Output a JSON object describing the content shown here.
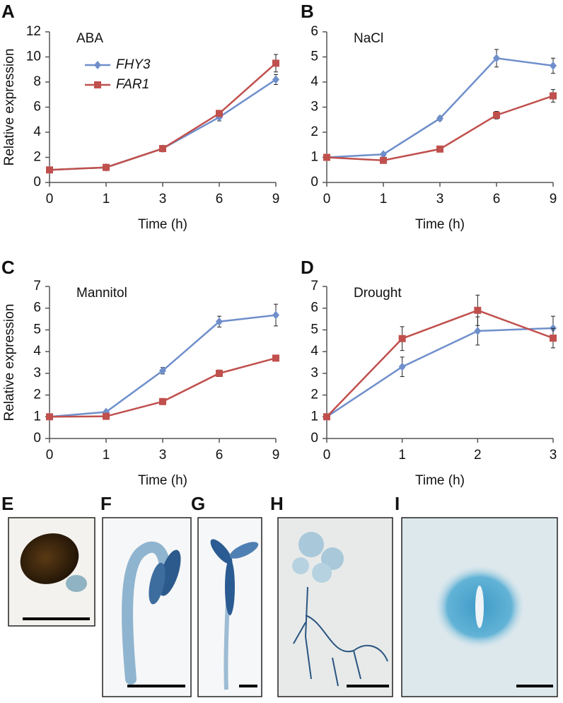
{
  "chart_data": [
    {
      "type": "line",
      "panel_label": "A",
      "title": "ABA",
      "xlabel": "Time (h)",
      "ylabel": "Relative expression",
      "categories": [
        "0",
        "1",
        "3",
        "6",
        "9"
      ],
      "ylim": [
        0,
        12
      ],
      "yticks": [
        0,
        2,
        4,
        6,
        8,
        10,
        12
      ],
      "legend": "upper left",
      "series": [
        {
          "name": "FHY3",
          "color": "#6f8fcb",
          "marker": "diamond",
          "values": [
            1,
            1.2,
            2.7,
            5.2,
            8.2
          ],
          "errors": [
            0.05,
            0.1,
            0.1,
            0.3,
            0.4
          ]
        },
        {
          "name": "FAR1",
          "color": "#c0504d",
          "marker": "square",
          "values": [
            1,
            1.2,
            2.7,
            5.5,
            9.5
          ],
          "errors": [
            0.05,
            0.1,
            0.1,
            0.2,
            0.7
          ]
        }
      ]
    },
    {
      "type": "line",
      "panel_label": "B",
      "title": "NaCl",
      "xlabel": "Time (h)",
      "categories": [
        "0",
        "1",
        "3",
        "6",
        "9"
      ],
      "ylim": [
        0,
        6
      ],
      "yticks": [
        0,
        1,
        2,
        3,
        4,
        5,
        6
      ],
      "series": [
        {
          "color": "#6f8fcb",
          "marker": "diamond",
          "values": [
            1,
            1.12,
            2.55,
            4.95,
            4.65
          ],
          "errors": [
            0.02,
            0.05,
            0.08,
            0.35,
            0.3
          ]
        },
        {
          "color": "#c0504d",
          "marker": "square",
          "values": [
            1,
            0.88,
            1.33,
            2.68,
            3.45
          ],
          "errors": [
            0.02,
            0.03,
            0.05,
            0.15,
            0.25
          ]
        }
      ]
    },
    {
      "type": "line",
      "panel_label": "C",
      "title": "Mannitol",
      "xlabel": "Time (h)",
      "ylabel": "Relative expression",
      "categories": [
        "0",
        "1",
        "3",
        "6",
        "9"
      ],
      "ylim": [
        0,
        7
      ],
      "yticks": [
        0,
        1,
        2,
        3,
        4,
        5,
        6,
        7
      ],
      "series": [
        {
          "color": "#6f8fcb",
          "marker": "diamond",
          "values": [
            1,
            1.22,
            3.12,
            5.38,
            5.68
          ],
          "errors": [
            0.02,
            0.05,
            0.15,
            0.25,
            0.5
          ]
        },
        {
          "color": "#c0504d",
          "marker": "square",
          "values": [
            1,
            1.02,
            1.7,
            3.0,
            3.7
          ],
          "errors": [
            0.02,
            0.05,
            0.05,
            0.15,
            0.1
          ]
        }
      ]
    },
    {
      "type": "line",
      "panel_label": "D",
      "title": "Drought",
      "xlabel": "Time (h)",
      "categories": [
        "0",
        "1",
        "2",
        "3"
      ],
      "ylim": [
        0,
        7
      ],
      "yticks": [
        0,
        1,
        2,
        3,
        4,
        5,
        6,
        7
      ],
      "series": [
        {
          "color": "#6f8fcb",
          "marker": "diamond",
          "values": [
            1,
            3.3,
            4.95,
            5.08
          ],
          "errors": [
            0.02,
            0.45,
            0.65,
            0.55
          ]
        },
        {
          "color": "#c0504d",
          "marker": "square",
          "values": [
            1,
            4.6,
            5.9,
            4.62
          ],
          "errors": [
            0.02,
            0.55,
            0.7,
            0.45
          ]
        }
      ]
    }
  ],
  "photo_panels": [
    {
      "label": "E"
    },
    {
      "label": "F"
    },
    {
      "label": "G"
    },
    {
      "label": "H"
    },
    {
      "label": "I"
    }
  ]
}
